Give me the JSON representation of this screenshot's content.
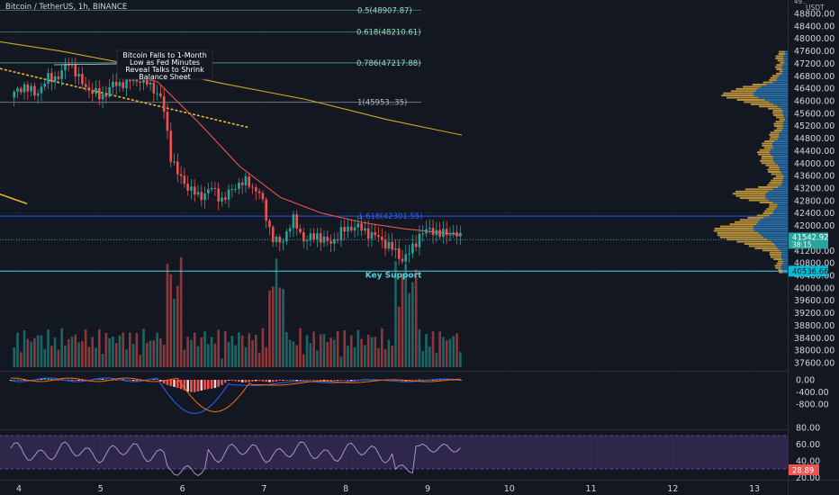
{
  "header": {
    "title": "Bitcoin / TetherUS, 1h, BINANCE"
  },
  "price_axis": {
    "top_label": "49..",
    "unit": "USDT",
    "ticks": [
      "48800.00",
      "48400.00",
      "48000.00",
      "47600.00",
      "47200.00",
      "46800.00",
      "46400.00",
      "46000.00",
      "45600.00",
      "45200.00",
      "44800.00",
      "44400.00",
      "44000.00",
      "43600.00",
      "43200.00",
      "42800.00",
      "42400.00",
      "42000.00",
      "41200.00",
      "40800.00",
      "40400.00",
      "40000.00",
      "39600.00",
      "39200.00",
      "38800.00",
      "38400.00",
      "38000.00",
      "37600.00"
    ],
    "last_price": "41542.92",
    "countdown": "38:15",
    "support_price": "40536.66"
  },
  "macd_axis": {
    "ticks": [
      "0.00",
      "-400.00",
      "-800.00"
    ]
  },
  "rsi_axis": {
    "ticks": [
      "80.00",
      "60.00",
      "40.00",
      "20.00"
    ],
    "value": "28.89"
  },
  "time_axis": {
    "ticks": [
      "4",
      "5",
      "6",
      "7",
      "8",
      "9",
      "10",
      "11",
      "12",
      "13"
    ]
  },
  "annotations": {
    "news_box": [
      "Bitcoin Falls to 1-Month",
      "Low as Fed Minutes",
      "Reveal Talks to Shrink",
      "Balance Sheet"
    ],
    "key_support": "Key Support"
  },
  "colors": {
    "up": "#26a69a",
    "down": "#ef5350",
    "background": "#131722",
    "fib_green": "#3e8e6e",
    "ma_yellow": "#d4a62a",
    "vp_gold": "#b8913b",
    "vp_blue": "#2a6ea8",
    "rsi_purple": "#7e57c2"
  },
  "chart_data": {
    "type": "candlestick",
    "title": "Bitcoin / TetherUS, 1h, BINANCE",
    "y_range": [
      37400,
      49200
    ],
    "x_day_labels": [
      "4",
      "5",
      "6",
      "7",
      "8",
      "9",
      "10",
      "11",
      "12",
      "13"
    ],
    "fib_levels": [
      {
        "label": "0.5(48907.87)",
        "price": 48907.87
      },
      {
        "label": "0.618(48210.61)",
        "price": 48210.61
      },
      {
        "label": "0.786(47217.88)",
        "price": 47217.88
      },
      {
        "label": "1(45953..35)",
        "price": 45953.35
      },
      {
        "label": "1.618(42301.55)",
        "price": 42301.55
      }
    ],
    "close_path": [
      {
        "day": 3.9,
        "price": 46100
      },
      {
        "day": 4.05,
        "price": 46500
      },
      {
        "day": 4.2,
        "price": 46200
      },
      {
        "day": 4.35,
        "price": 46700
      },
      {
        "day": 4.5,
        "price": 46800
      },
      {
        "day": 4.62,
        "price": 47300
      },
      {
        "day": 4.75,
        "price": 46600
      },
      {
        "day": 4.9,
        "price": 46300
      },
      {
        "day": 5.0,
        "price": 46100
      },
      {
        "day": 5.15,
        "price": 46500
      },
      {
        "day": 5.3,
        "price": 46600
      },
      {
        "day": 5.5,
        "price": 46700
      },
      {
        "day": 5.65,
        "price": 46400
      },
      {
        "day": 5.75,
        "price": 46000
      },
      {
        "day": 5.8,
        "price": 45300
      },
      {
        "day": 5.85,
        "price": 44300
      },
      {
        "day": 5.95,
        "price": 43600
      },
      {
        "day": 6.05,
        "price": 43300
      },
      {
        "day": 6.2,
        "price": 42900
      },
      {
        "day": 6.35,
        "price": 43200
      },
      {
        "day": 6.5,
        "price": 42800
      },
      {
        "day": 6.65,
        "price": 43300
      },
      {
        "day": 6.8,
        "price": 43400
      },
      {
        "day": 6.95,
        "price": 43000
      },
      {
        "day": 7.1,
        "price": 41600
      },
      {
        "day": 7.2,
        "price": 41400
      },
      {
        "day": 7.35,
        "price": 42200
      },
      {
        "day": 7.5,
        "price": 41500
      },
      {
        "day": 7.65,
        "price": 41700
      },
      {
        "day": 7.8,
        "price": 41400
      },
      {
        "day": 7.95,
        "price": 41800
      },
      {
        "day": 8.1,
        "price": 42000
      },
      {
        "day": 8.25,
        "price": 41800
      },
      {
        "day": 8.4,
        "price": 41600
      },
      {
        "day": 8.55,
        "price": 41300
      },
      {
        "day": 8.7,
        "price": 40900
      },
      {
        "day": 8.8,
        "price": 41200
      },
      {
        "day": 8.9,
        "price": 41700
      },
      {
        "day": 9.05,
        "price": 41900
      },
      {
        "day": 9.15,
        "price": 41700
      },
      {
        "day": 9.3,
        "price": 41800
      },
      {
        "day": 9.42,
        "price": 41542.92
      }
    ],
    "moving_averages": [
      {
        "color": "#ef5350",
        "points": [
          {
            "day": 5.2,
            "price": 47000
          },
          {
            "day": 5.7,
            "price": 46600
          },
          {
            "day": 6.2,
            "price": 45300
          },
          {
            "day": 6.7,
            "price": 43900
          },
          {
            "day": 7.2,
            "price": 42900
          },
          {
            "day": 7.7,
            "price": 42400
          },
          {
            "day": 8.2,
            "price": 42100
          },
          {
            "day": 8.7,
            "price": 41900
          },
          {
            "day": 9.42,
            "price": 41700
          }
        ]
      },
      {
        "color": "#d4a62a",
        "points": [
          {
            "day": 3.5,
            "price": 48000
          },
          {
            "day": 4.5,
            "price": 47600
          },
          {
            "day": 5.5,
            "price": 47100
          },
          {
            "day": 6.5,
            "price": 46550
          },
          {
            "day": 7.5,
            "price": 46050
          },
          {
            "day": 8.5,
            "price": 45400
          },
          {
            "day": 9.42,
            "price": 44900
          }
        ]
      }
    ],
    "trendlines": [
      {
        "color": "#e8b92c",
        "dashed": true,
        "points": [
          {
            "day": 3.5,
            "price": 47200
          },
          {
            "day": 6.8,
            "price": 45150
          }
        ]
      },
      {
        "color": "#e8b92c",
        "dashed": false,
        "points": [
          {
            "day": 3.5,
            "price": 43250
          },
          {
            "day": 4.1,
            "price": 42700
          }
        ]
      }
    ],
    "support_level": 40536.66,
    "volume_profile_peaks_usdt": [
      46200,
      43000,
      41800
    ],
    "rsi": {
      "last": 28.89,
      "bands": [
        70,
        30
      ]
    },
    "macd": {
      "histogram_min": -1100
    }
  }
}
